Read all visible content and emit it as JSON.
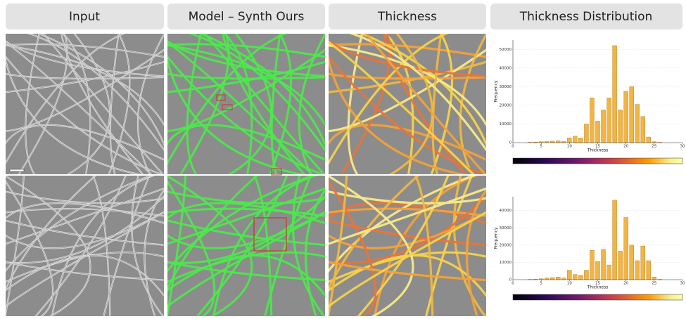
{
  "header": {
    "columns": [
      "Input",
      "Model – Synth Ours",
      "Thickness",
      "Thickness Distribution"
    ]
  },
  "chart_data": [
    {
      "type": "bar",
      "xlabel": "Thickness",
      "ylabel": "Frequency",
      "color": "#f2b443",
      "x": [
        2,
        3,
        4,
        5,
        6,
        7,
        8,
        9,
        10,
        11,
        12,
        13,
        14,
        15,
        16,
        17,
        18,
        19,
        20,
        21,
        22,
        23,
        24,
        25,
        26
      ],
      "values": [
        0,
        200,
        300,
        500,
        600,
        800,
        1000,
        600,
        2500,
        3500,
        2500,
        10000,
        24000,
        11500,
        17500,
        24000,
        52000,
        17500,
        27500,
        30000,
        20500,
        14000,
        3000,
        500,
        200
      ],
      "xlim": [
        0,
        30
      ],
      "xticks": [
        0,
        5,
        10,
        15,
        20,
        25,
        30
      ],
      "ylim": [
        0,
        55000
      ],
      "yticks": [
        0,
        10000,
        20000,
        30000,
        40000,
        50000
      ]
    },
    {
      "type": "bar",
      "xlabel": "Thickness",
      "ylabel": "Frequency",
      "color": "#f2b443",
      "x": [
        2,
        3,
        4,
        5,
        6,
        7,
        8,
        9,
        10,
        11,
        12,
        13,
        14,
        15,
        16,
        17,
        18,
        19,
        20,
        21,
        22,
        23,
        24,
        25,
        26
      ],
      "values": [
        0,
        200,
        300,
        500,
        1000,
        1200,
        1500,
        1000,
        5500,
        3000,
        2500,
        5500,
        17000,
        10500,
        17500,
        8500,
        46000,
        16500,
        36000,
        20000,
        11000,
        19500,
        11000,
        1500,
        200
      ],
      "xlim": [
        0,
        30
      ],
      "xticks": [
        0,
        5,
        10,
        15,
        20,
        25,
        30
      ],
      "ylim": [
        0,
        48000
      ],
      "yticks": [
        0,
        10000,
        20000,
        30000,
        40000
      ]
    }
  ]
}
